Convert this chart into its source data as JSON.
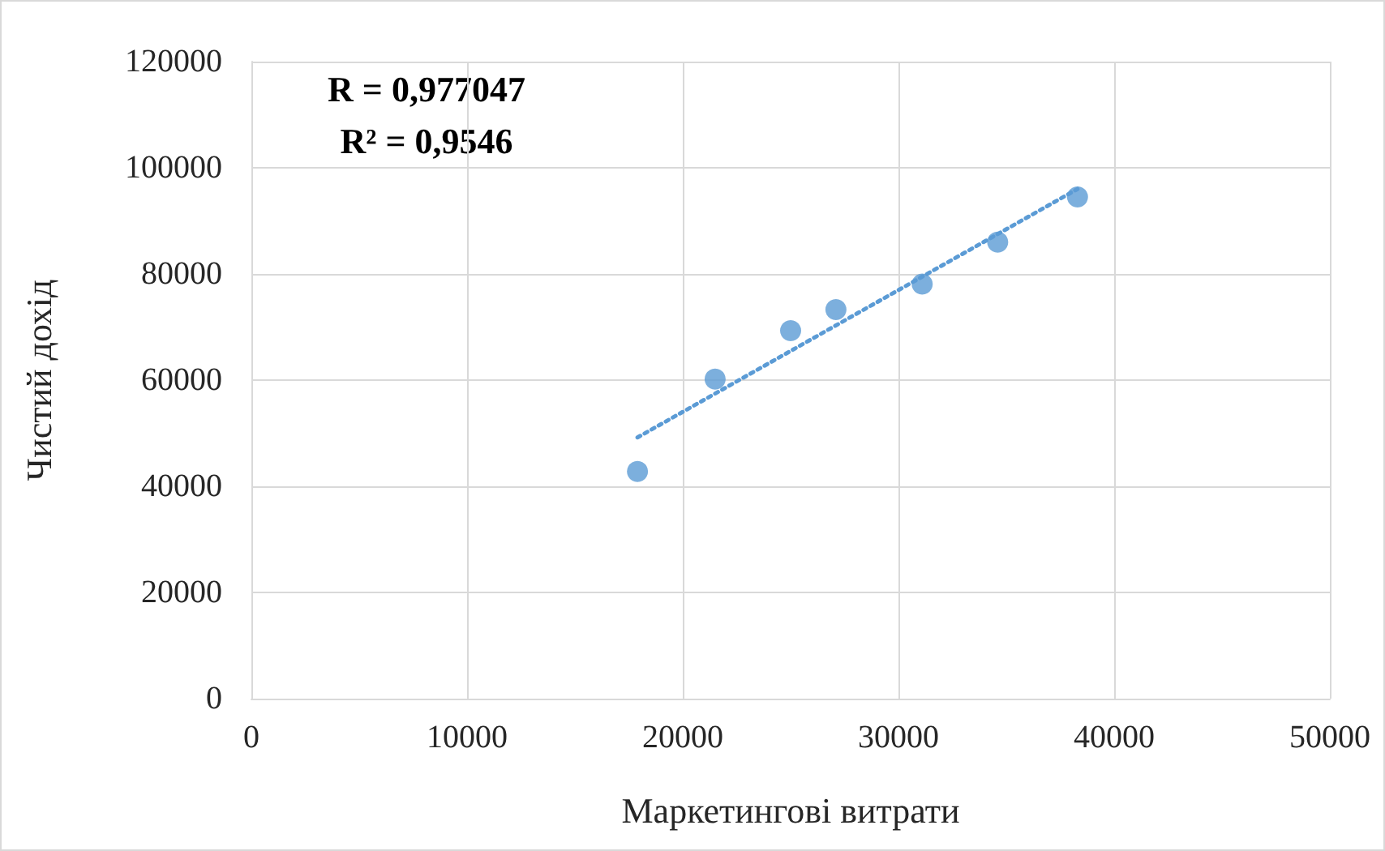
{
  "chart_data": {
    "type": "scatter",
    "xlabel": "Маркетингові витрати",
    "ylabel": "Чистий дохід",
    "annotations": [
      "R = 0,977047",
      "R² = 0,9546"
    ],
    "series": [
      {
        "type": "scatter",
        "color": "#5b9bd5",
        "marker": "circle",
        "x": [
          17900,
          21500,
          25000,
          27100,
          31100,
          34600,
          38300
        ],
        "values": [
          42800,
          60200,
          69300,
          73300,
          78100,
          86000,
          94500
        ]
      },
      {
        "type": "line",
        "color": "#5b9bd5",
        "marker": "none",
        "line_style": "dotted",
        "x": [
          17900,
          38300
        ],
        "values": [
          49200,
          96000
        ]
      }
    ],
    "xlim": [
      0,
      50000
    ],
    "xticks": [
      0,
      10000,
      20000,
      30000,
      40000,
      50000
    ],
    "ylim": [
      0,
      120000
    ],
    "yticks": [
      0,
      20000,
      40000,
      60000,
      80000,
      100000,
      120000
    ],
    "grid": true
  }
}
